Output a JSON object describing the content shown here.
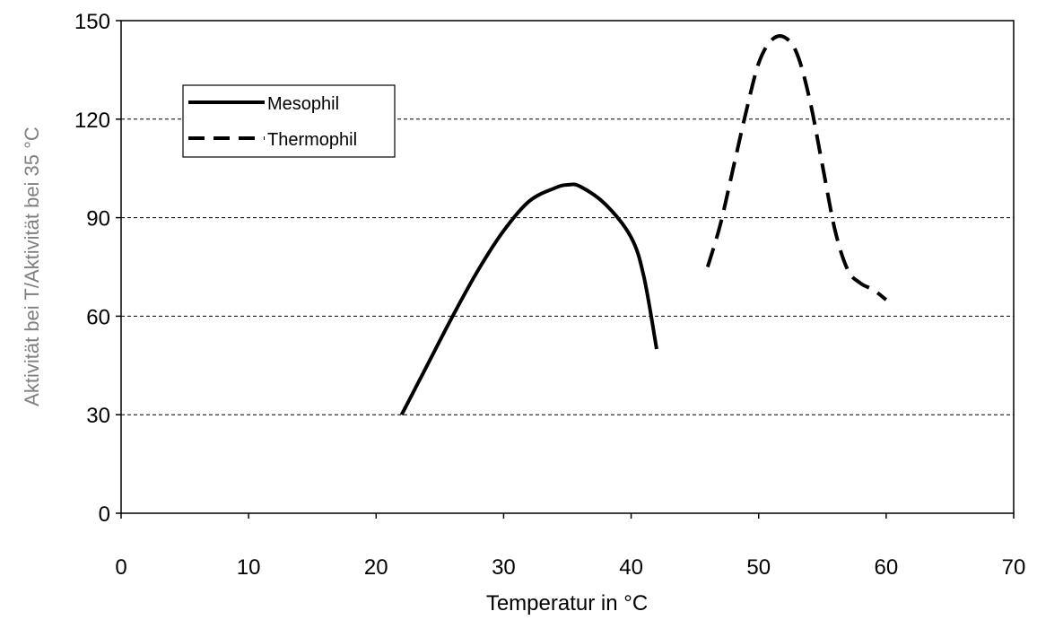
{
  "chart_data": {
    "type": "line",
    "xlabel": "Temperatur in °C",
    "ylabel": "Aktivität bei T/Aktivität bei 35 °C",
    "xlim": [
      0,
      70
    ],
    "ylim": [
      0,
      150
    ],
    "x_ticks": [
      0,
      10,
      20,
      30,
      40,
      50,
      60,
      70
    ],
    "y_ticks": [
      0,
      30,
      60,
      90,
      120,
      150
    ],
    "grid": "horizontal dashed",
    "legend_position": "top-left",
    "series": [
      {
        "name": "Mesophil",
        "style": "solid",
        "color": "#000000",
        "x": [
          22,
          24,
          26,
          28,
          30,
          32,
          34,
          35,
          36,
          38,
          40,
          41,
          42
        ],
        "y": [
          30,
          45,
          60,
          74,
          86,
          95,
          99,
          100,
          99.5,
          94,
          84,
          72,
          50
        ]
      },
      {
        "name": "Thermophil",
        "style": "dashed",
        "color": "#000000",
        "x": [
          46,
          47,
          48,
          49,
          50,
          51,
          52,
          53,
          54,
          55,
          56,
          57,
          58,
          59,
          60
        ],
        "y": [
          75,
          88,
          105,
          122,
          137,
          144,
          145,
          140,
          126,
          106,
          86,
          74,
          70,
          68,
          65
        ]
      }
    ]
  }
}
